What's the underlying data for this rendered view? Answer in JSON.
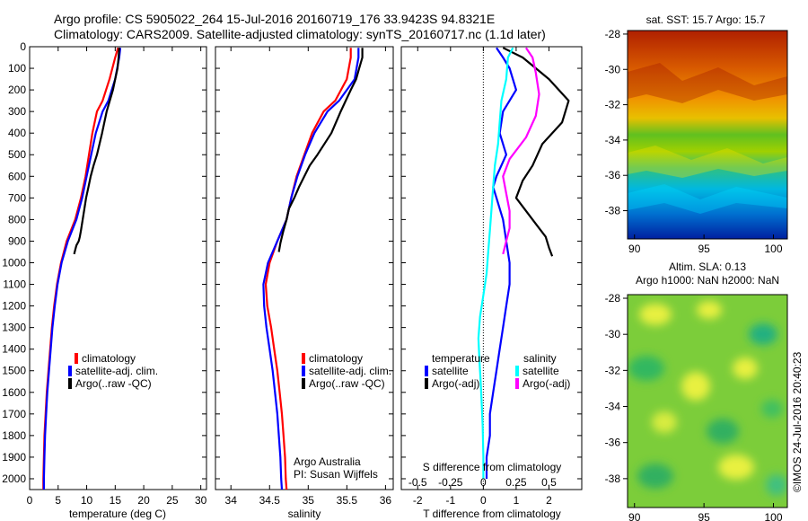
{
  "header": {
    "line1": "Argo profile: CS 5905022_264 15-Jul-2016 20160719_176 33.9423S 94.8321E",
    "line2": "Climatology: CARS2009. Satellite-adjusted climatology: synTS_20160717.nc (1.1d later)"
  },
  "credit": {
    "org": "Argo Australia",
    "pi": "PI: Susan Wijffels",
    "imos": "©IMOS 24-Jul-2016 20:40:23"
  },
  "colors": {
    "climatology": "#ff0000",
    "satellite": "#0000ff",
    "argo": "#000000",
    "salinity_satellite": "#00ffff",
    "salinity_argo": "#ff00ff"
  },
  "chart_data": [
    {
      "type": "line",
      "id": "temperature",
      "xlabel": "temperature (deg C)",
      "ylabel": "",
      "xlim": [
        0,
        31
      ],
      "ylim": [
        2050,
        0
      ],
      "xticks": [
        0,
        5,
        10,
        15,
        20,
        25,
        30
      ],
      "yticks": [
        0,
        100,
        200,
        300,
        400,
        500,
        600,
        700,
        800,
        900,
        1000,
        1100,
        1200,
        1300,
        1400,
        1500,
        1600,
        1700,
        1800,
        1900,
        2000
      ],
      "legend": [
        "climatology",
        "satellite-adj. clim.",
        "Argo(..raw -QC)"
      ],
      "series": [
        {
          "name": "climatology",
          "color": "#ff0000",
          "x": [
            15.5,
            15.0,
            14.0,
            12.8,
            11.8,
            11.0,
            10.4,
            9.8,
            9.0,
            8.0,
            6.5,
            5.5,
            4.8,
            4.3,
            3.9,
            3.6,
            3.3,
            3.0,
            2.8,
            2.6,
            2.5,
            2.4,
            2.4
          ],
          "y": [
            5,
            50,
            150,
            250,
            300,
            400,
            500,
            600,
            700,
            800,
            900,
            1000,
            1100,
            1200,
            1300,
            1400,
            1500,
            1600,
            1700,
            1800,
            1900,
            2000,
            2050
          ]
        },
        {
          "name": "satellite-adj. clim.",
          "color": "#0000ff",
          "x": [
            15.9,
            15.7,
            15.0,
            13.8,
            12.8,
            11.6,
            10.8,
            10.0,
            9.2,
            8.2,
            6.7,
            5.6,
            4.9,
            4.4,
            4.0,
            3.7,
            3.4,
            3.1,
            2.9,
            2.7,
            2.6,
            2.5,
            2.5
          ],
          "y": [
            5,
            50,
            150,
            250,
            300,
            400,
            500,
            600,
            700,
            800,
            900,
            1000,
            1100,
            1200,
            1300,
            1400,
            1500,
            1600,
            1700,
            1800,
            1900,
            2000,
            2050
          ]
        },
        {
          "name": "Argo(..raw -QC)",
          "color": "#000000",
          "x": [
            15.7,
            15.6,
            15.4,
            15.0,
            14.6,
            13.5,
            12.7,
            11.8,
            11.2,
            10.7,
            10.3,
            9.9,
            9.6,
            9.3,
            9.0,
            8.8,
            8.6,
            8.2,
            8.0,
            7.8
          ],
          "y": [
            5,
            50,
            100,
            150,
            200,
            300,
            400,
            500,
            550,
            600,
            650,
            700,
            750,
            800,
            850,
            880,
            900,
            920,
            940,
            960
          ]
        }
      ]
    },
    {
      "type": "line",
      "id": "salinity",
      "xlabel": "salinity",
      "ylabel": "",
      "xlim": [
        33.8,
        36.1
      ],
      "ylim": [
        2050,
        0
      ],
      "xticks": [
        34,
        34.5,
        35,
        35.5,
        36
      ],
      "legend": [
        "climatology",
        "satellite-adj. clim.",
        "Argo(..raw -QC)"
      ],
      "series": [
        {
          "name": "climatology",
          "color": "#ff0000",
          "x": [
            35.55,
            35.55,
            35.5,
            35.35,
            35.2,
            35.05,
            34.95,
            34.85,
            34.78,
            34.72,
            34.6,
            34.5,
            34.45,
            34.47,
            34.52,
            34.56,
            34.6,
            34.63,
            34.66,
            34.68,
            34.7,
            34.71,
            34.72
          ],
          "y": [
            5,
            50,
            150,
            250,
            300,
            400,
            500,
            600,
            700,
            800,
            900,
            1000,
            1100,
            1200,
            1300,
            1400,
            1500,
            1600,
            1700,
            1800,
            1900,
            2000,
            2050
          ]
        },
        {
          "name": "satellite-adj. clim.",
          "color": "#0000ff",
          "x": [
            35.65,
            35.65,
            35.6,
            35.4,
            35.25,
            35.08,
            34.96,
            34.86,
            34.78,
            34.72,
            34.6,
            34.48,
            34.42,
            34.43,
            34.46,
            34.5,
            34.54,
            34.57,
            34.6,
            34.62,
            34.64,
            34.65,
            34.66
          ],
          "y": [
            5,
            50,
            150,
            250,
            300,
            400,
            500,
            600,
            700,
            800,
            900,
            1000,
            1100,
            1200,
            1300,
            1400,
            1500,
            1600,
            1700,
            1800,
            1900,
            2000,
            2050
          ]
        },
        {
          "name": "Argo(..raw -QC)",
          "color": "#000000",
          "x": [
            35.7,
            35.7,
            35.66,
            35.62,
            35.55,
            35.42,
            35.3,
            35.12,
            35.02,
            34.95,
            34.88,
            34.82,
            34.75,
            34.72,
            34.68,
            34.66,
            34.64,
            34.62
          ],
          "y": [
            5,
            50,
            100,
            150,
            200,
            300,
            400,
            500,
            550,
            600,
            650,
            700,
            750,
            800,
            850,
            880,
            910,
            950
          ]
        }
      ]
    },
    {
      "type": "line",
      "id": "difference",
      "xlabel": "T difference from climatology",
      "top_label": "S difference from climatology",
      "xlim": [
        -2.5,
        3.0
      ],
      "ylim": [
        2050,
        0
      ],
      "xticks": [
        -2,
        -1,
        0,
        1,
        2
      ],
      "xticklabels": [
        "-2",
        "-1",
        "0",
        "1",
        "2"
      ],
      "sticks": [
        -0.5,
        -0.25,
        0,
        0.25,
        0.5
      ],
      "sticklabels": [
        "-0.5",
        "-0.25",
        "0",
        "0.25",
        "0.5"
      ],
      "legend_groups": [
        {
          "title": "temperature",
          "items": [
            "satellite",
            "Argo(-adj)"
          ]
        },
        {
          "title": "salinity",
          "items": [
            "satellite",
            "Argo(-adj)"
          ]
        }
      ],
      "series": [
        {
          "name": "temperature satellite",
          "color": "#0000ff",
          "x": [
            0.4,
            0.6,
            0.8,
            1.0,
            0.6,
            0.5,
            0.7,
            0.4,
            0.3,
            0.4,
            0.6,
            0.7,
            0.8,
            0.8,
            0.7,
            0.6,
            0.5,
            0.4,
            0.3,
            0.2,
            0.2,
            0.1,
            0.1
          ],
          "y": [
            5,
            50,
            100,
            200,
            300,
            400,
            500,
            600,
            650,
            700,
            800,
            900,
            1000,
            1100,
            1200,
            1300,
            1400,
            1500,
            1600,
            1700,
            1800,
            1900,
            2000
          ]
        },
        {
          "name": "temperature Argo(-adj)",
          "color": "#000000",
          "x": [
            0.6,
            1.2,
            1.6,
            2.0,
            2.6,
            2.4,
            1.8,
            1.5,
            1.2,
            1.0,
            1.3,
            1.6,
            1.9,
            2.0,
            2.1
          ],
          "y": [
            5,
            50,
            100,
            150,
            250,
            350,
            450,
            550,
            620,
            700,
            760,
            820,
            880,
            930,
            970
          ]
        },
        {
          "name": "salinity satellite",
          "color": "#00ffff",
          "x": [
            0.9,
            0.75,
            0.7,
            0.55,
            0.5,
            0.45,
            0.35,
            0.3,
            0.25,
            0.2,
            0.15,
            0.1,
            0.0,
            -0.1,
            -0.15,
            -0.12,
            -0.08,
            -0.05,
            -0.02,
            0.0,
            0.0
          ],
          "y": [
            5,
            50,
            150,
            250,
            350,
            450,
            550,
            650,
            750,
            850,
            950,
            1050,
            1150,
            1250,
            1350,
            1450,
            1550,
            1650,
            1750,
            1900,
            2000
          ]
        },
        {
          "name": "salinity Argo(-adj)",
          "color": "#ff00ff",
          "x": [
            1.3,
            1.5,
            1.6,
            1.7,
            1.6,
            1.3,
            0.8,
            0.6,
            0.7,
            0.8,
            0.8,
            0.7,
            0.6
          ],
          "y": [
            5,
            50,
            120,
            220,
            320,
            420,
            520,
            600,
            680,
            760,
            840,
            900,
            960
          ]
        }
      ]
    },
    {
      "type": "heatmap",
      "id": "sst-map",
      "title": "sat. SST: 15.7 Argo: 15.7",
      "xlim": [
        89.5,
        101
      ],
      "ylim": [
        -39.6,
        -27.8
      ],
      "xticks": [
        90,
        95,
        100
      ],
      "yticks": [
        -28,
        -30,
        -32,
        -34,
        -36,
        -38
      ]
    },
    {
      "type": "heatmap",
      "id": "sla-map",
      "title": "Altim. SLA: 0.13",
      "title2": "Argo h1000: NaN h2000: NaN",
      "xlim": [
        89.5,
        101
      ],
      "ylim": [
        -39.6,
        -27.8
      ],
      "xticks": [
        90,
        95,
        100
      ],
      "yticks": [
        -28,
        -30,
        -32,
        -34,
        -36,
        -38
      ]
    }
  ]
}
